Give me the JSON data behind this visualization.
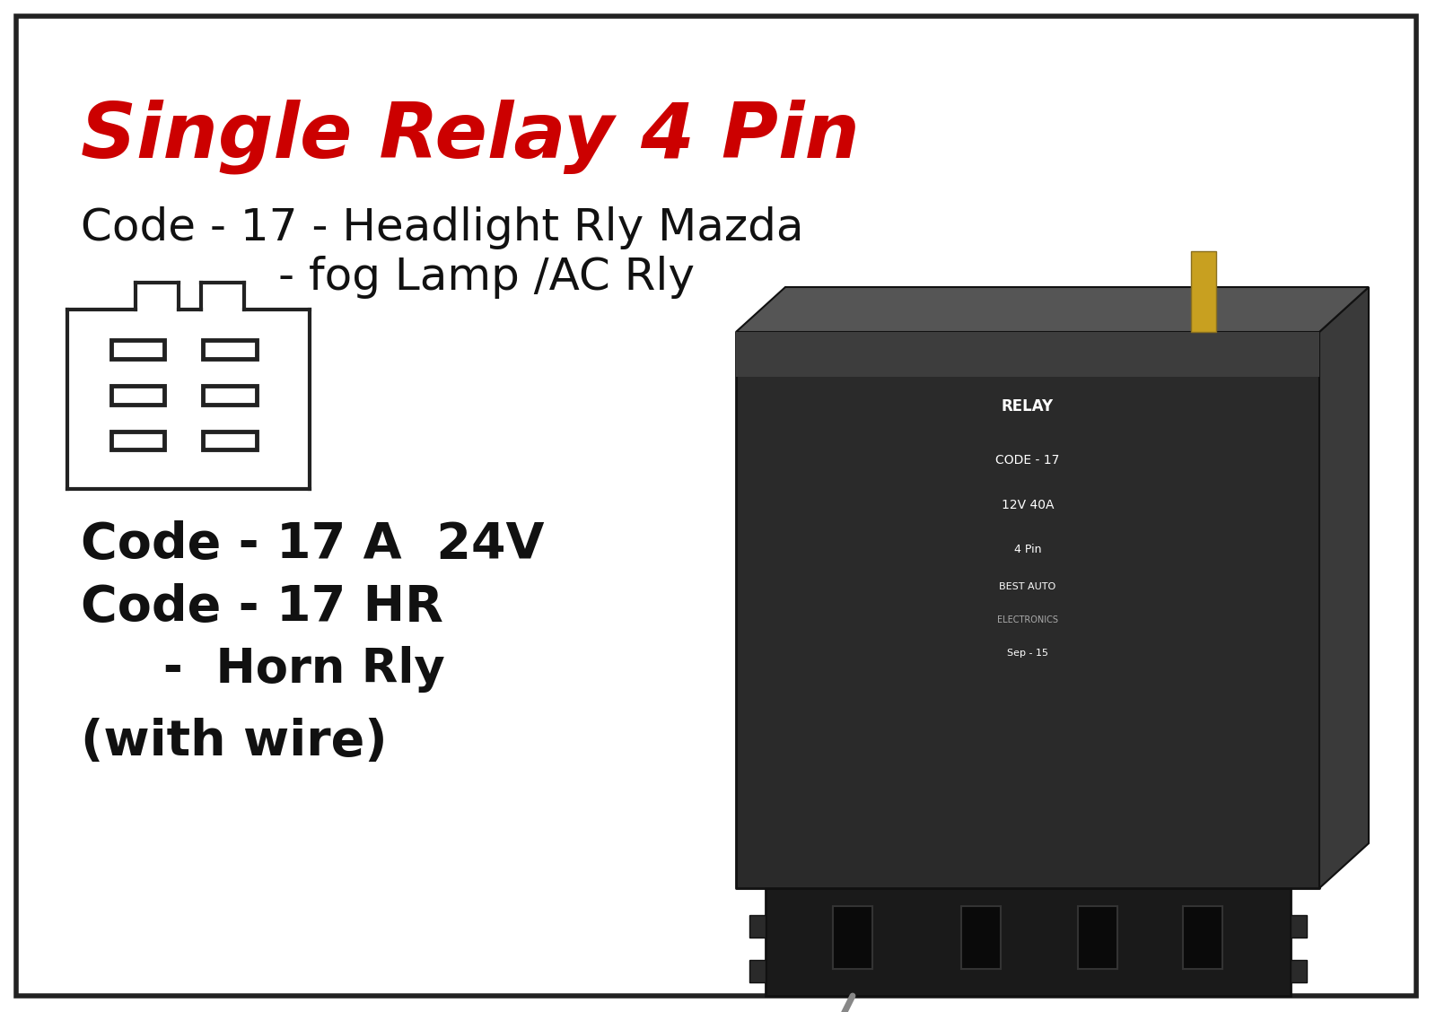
{
  "title": "Single Relay 4 Pin",
  "title_color": "#cc0000",
  "title_fontsize": 62,
  "bg_color": "#ffffff",
  "border_color": "#222222",
  "text_color": "#111111",
  "line1": "Code - 17 - Headlight Rly Mazda",
  "line2": "- fog Lamp /AC Rly",
  "line3": "Code - 17 A  24V",
  "line4": "Code - 17 HR",
  "line5": "     -  Horn Rly",
  "line6": "(with wire)",
  "body_fontsize": 36,
  "figsize": [
    16.0,
    11.28
  ],
  "dpi": 100
}
